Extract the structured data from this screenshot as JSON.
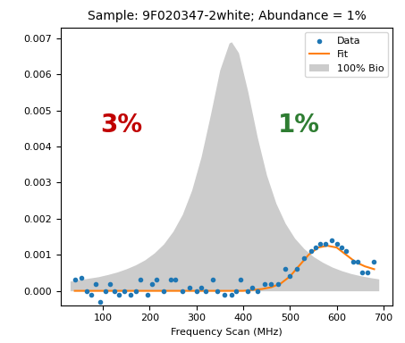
{
  "chart_data": {
    "type": "line",
    "title": "Sample: 9F020347-2white; Abundance = 1%",
    "x_label": "Frequency Scan (MHz)",
    "xlim": [
      10,
      720
    ],
    "ylim": [
      -0.0004,
      0.0073
    ],
    "xticks": [
      100,
      200,
      300,
      400,
      500,
      600,
      700
    ],
    "yticks": [
      {
        "value": 0.0,
        "label": "0.000"
      },
      {
        "value": 0.001,
        "label": "0.001"
      },
      {
        "value": 0.002,
        "label": "0.002"
      },
      {
        "value": 0.003,
        "label": "0.003"
      },
      {
        "value": 0.004,
        "label": "0.004"
      },
      {
        "value": 0.005,
        "label": "0.005"
      },
      {
        "value": 0.006,
        "label": "0.006"
      },
      {
        "value": 0.007,
        "label": "0.007"
      }
    ],
    "legend": "upper right",
    "series": [
      {
        "name": "Data",
        "type": "scatter",
        "color": "#1f77b4",
        "marker": "o",
        "x": [
          40,
          55,
          65,
          75,
          85,
          95,
          105,
          115,
          125,
          135,
          145,
          160,
          170,
          180,
          195,
          205,
          215,
          230,
          245,
          255,
          270,
          285,
          300,
          310,
          320,
          335,
          345,
          360,
          375,
          385,
          395,
          410,
          420,
          430,
          445,
          460,
          475,
          490,
          500,
          515,
          530,
          545,
          555,
          565,
          575,
          590,
          600,
          610,
          620,
          635,
          645,
          655,
          665,
          680
        ],
        "values": [
          0.0003,
          0.00035,
          0.0,
          -0.0001,
          0.0002,
          -0.0003,
          0.0,
          0.0002,
          0.0,
          -0.0001,
          0.0,
          -0.0001,
          0.0,
          0.0003,
          -0.0001,
          0.0002,
          0.0003,
          0.0,
          0.0003,
          0.0003,
          0.0,
          0.0001,
          0.0,
          0.0001,
          0.0,
          0.0003,
          0.0,
          -0.0001,
          -0.0001,
          0.0,
          0.0003,
          0.0,
          0.0001,
          0.0,
          0.0002,
          0.0002,
          0.0002,
          0.0006,
          0.0004,
          0.0006,
          0.0009,
          0.0011,
          0.0012,
          0.0013,
          0.0013,
          0.0014,
          0.0013,
          0.0012,
          0.0011,
          0.0008,
          0.0008,
          0.0005,
          0.0005,
          0.0008
        ]
      },
      {
        "name": "Fit",
        "type": "line",
        "color": "#ff7f0e",
        "line_style": "solid",
        "x": [
          40,
          100,
          200,
          300,
          400,
          440,
          460,
          480,
          500,
          520,
          540,
          560,
          580,
          600,
          620,
          640,
          660,
          680
        ],
        "values": [
          0.0,
          0.0,
          0.0,
          0.0,
          0.0,
          5e-05,
          0.0001,
          0.0002,
          0.0004,
          0.0007,
          0.001,
          0.0012,
          0.00125,
          0.0012,
          0.001,
          0.0008,
          0.00068,
          0.0006
        ]
      },
      {
        "name": "100% Bio",
        "type": "area",
        "color": "#cccccc",
        "x": [
          30,
          50,
          70,
          90,
          110,
          130,
          150,
          170,
          190,
          210,
          230,
          250,
          270,
          290,
          310,
          330,
          350,
          370,
          375,
          390,
          410,
          430,
          450,
          470,
          490,
          510,
          530,
          550,
          570,
          590,
          610,
          630,
          650,
          670,
          690
        ],
        "values": [
          0.00027,
          0.00031,
          0.00035,
          0.00039,
          0.00045,
          0.00052,
          0.00061,
          0.00072,
          0.00086,
          0.00105,
          0.0013,
          0.00165,
          0.00212,
          0.00279,
          0.00371,
          0.00488,
          0.00612,
          0.00687,
          0.0069,
          0.0066,
          0.00552,
          0.00427,
          0.00321,
          0.00243,
          0.00187,
          0.00146,
          0.00117,
          0.00095,
          0.00079,
          0.00066,
          0.00056,
          0.00048,
          0.00042,
          0.00037,
          0.00033
        ]
      }
    ],
    "annotations": [
      {
        "text": "3%",
        "x": 140,
        "y": 0.0046,
        "color": "#c00000"
      },
      {
        "text": "1%",
        "x": 520,
        "y": 0.0046,
        "color": "#2e7d32"
      }
    ]
  }
}
